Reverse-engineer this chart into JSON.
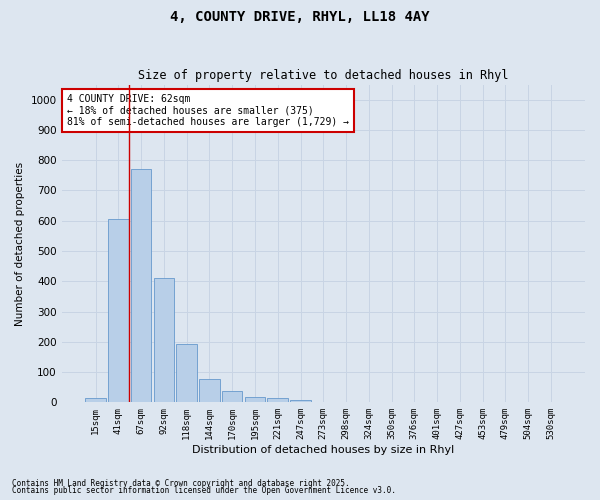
{
  "title1": "4, COUNTY DRIVE, RHYL, LL18 4AY",
  "title2": "Size of property relative to detached houses in Rhyl",
  "xlabel": "Distribution of detached houses by size in Rhyl",
  "ylabel": "Number of detached properties",
  "categories": [
    "15sqm",
    "41sqm",
    "67sqm",
    "92sqm",
    "118sqm",
    "144sqm",
    "170sqm",
    "195sqm",
    "221sqm",
    "247sqm",
    "273sqm",
    "298sqm",
    "324sqm",
    "350sqm",
    "376sqm",
    "401sqm",
    "427sqm",
    "453sqm",
    "479sqm",
    "504sqm",
    "530sqm"
  ],
  "values": [
    15,
    605,
    770,
    412,
    193,
    78,
    38,
    18,
    15,
    8,
    2,
    0,
    0,
    0,
    0,
    0,
    0,
    0,
    0,
    0,
    0
  ],
  "bar_color": "#b8cfe8",
  "bar_edge_color": "#6699cc",
  "grid_color": "#c8d4e4",
  "background_color": "#dde6f0",
  "vline_color": "#cc0000",
  "annotation_text": "4 COUNTY DRIVE: 62sqm\n← 18% of detached houses are smaller (375)\n81% of semi-detached houses are larger (1,729) →",
  "annotation_box_color": "#ffffff",
  "annotation_box_edge": "#cc0000",
  "ylim": [
    0,
    1050
  ],
  "yticks": [
    0,
    100,
    200,
    300,
    400,
    500,
    600,
    700,
    800,
    900,
    1000
  ],
  "footnote1": "Contains HM Land Registry data © Crown copyright and database right 2025.",
  "footnote2": "Contains public sector information licensed under the Open Government Licence v3.0."
}
